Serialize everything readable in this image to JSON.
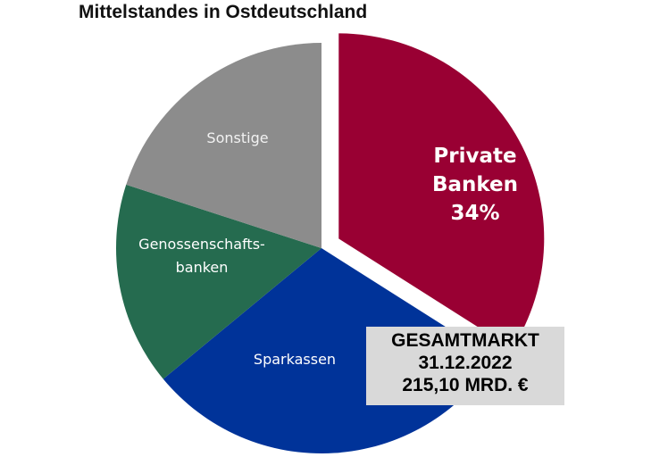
{
  "chart_data": {
    "type": "pie",
    "title": "Mittelstandes in Ostdeutschland",
    "slices": [
      {
        "label": "Private Banken",
        "value": 34,
        "value_label": "34%",
        "color": "#990033",
        "exploded": true
      },
      {
        "label": "Sparkassen",
        "value": 30,
        "color": "#003399",
        "exploded": false
      },
      {
        "label": "Genossenschafts-banken",
        "value": 16,
        "color": "#256b4f",
        "exploded": false
      },
      {
        "label": "Sonstige",
        "value": 20,
        "color": "#8c8c8c",
        "exploded": false
      }
    ],
    "annotation": {
      "line1": "GESAMTMARKT",
      "line2": "31.12.2022",
      "line3": "215,10  MRD. €"
    }
  },
  "colors": {
    "label_light": "#ffffff",
    "label_gray": "#f2f2f2",
    "annotation_bg": "#d9d9d9"
  }
}
